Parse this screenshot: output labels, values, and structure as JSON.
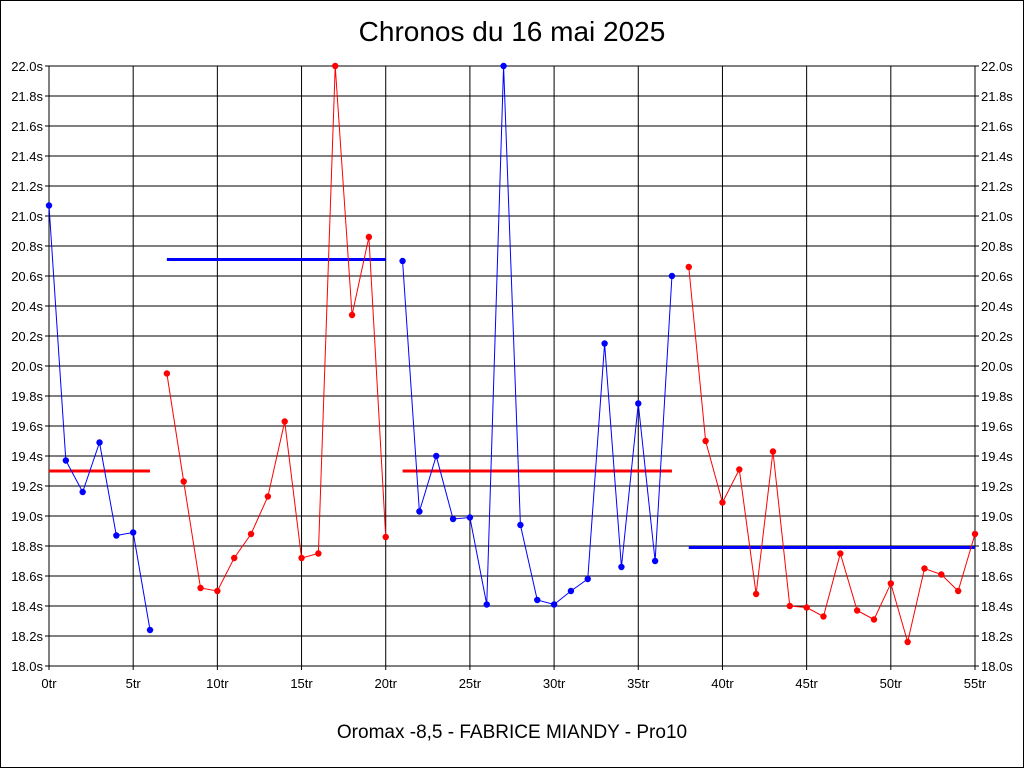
{
  "chart_data": {
    "type": "line",
    "title": "Chronos du 16 mai 2025",
    "subtitle": "Oromax -8,5 - FABRICE MIANDY - Pro10",
    "xlabel": "",
    "ylabel": "",
    "xlim": [
      0,
      55
    ],
    "ylim": [
      18.0,
      22.0
    ],
    "grid": true,
    "x_tick_labels": [
      "0tr",
      "5tr",
      "10tr",
      "15tr",
      "20tr",
      "25tr",
      "30tr",
      "35tr",
      "40tr",
      "45tr",
      "50tr",
      "55tr"
    ],
    "y_tick_labels": [
      "18.0s",
      "18.2s",
      "18.4s",
      "18.6s",
      "18.8s",
      "19.0s",
      "19.2s",
      "19.4s",
      "19.6s",
      "19.8s",
      "20.0s",
      "20.2s",
      "20.4s",
      "20.6s",
      "20.8s",
      "21.0s",
      "21.2s",
      "21.4s",
      "21.6s",
      "21.8s",
      "22.0s"
    ],
    "colors": {
      "blue": "#0000ff",
      "red": "#ff0000"
    },
    "series": [
      {
        "color": "blue",
        "x": [
          0,
          1,
          2,
          3,
          4,
          5,
          6
        ],
        "y": [
          21.07,
          19.37,
          19.16,
          19.49,
          18.87,
          18.89,
          18.24
        ]
      },
      {
        "color": "red",
        "x": [
          7,
          8,
          9,
          10,
          11,
          12,
          13,
          14,
          15,
          16,
          17,
          18,
          19,
          20
        ],
        "y": [
          19.95,
          19.23,
          18.52,
          18.5,
          18.72,
          18.88,
          19.13,
          19.63,
          18.72,
          18.75,
          22.0,
          20.34,
          20.86,
          18.86
        ]
      },
      {
        "color": "blue",
        "x": [
          21,
          22,
          23,
          24,
          25,
          26,
          27,
          28,
          29,
          30,
          31,
          32,
          33,
          34,
          35,
          36,
          37
        ],
        "y": [
          20.7,
          19.03,
          19.4,
          18.98,
          18.99,
          18.41,
          22.0,
          18.94,
          18.44,
          18.41,
          18.5,
          18.58,
          20.15,
          18.66,
          19.75,
          18.7,
          20.6
        ]
      },
      {
        "color": "red",
        "x": [
          38,
          39,
          40,
          41,
          42,
          43,
          44,
          45,
          46,
          47,
          48,
          49,
          50,
          51,
          52,
          53,
          54,
          55
        ],
        "y": [
          20.66,
          19.5,
          19.09,
          19.31,
          18.48,
          19.43,
          18.4,
          18.39,
          18.33,
          18.75,
          18.37,
          18.31,
          18.55,
          18.16,
          18.65,
          18.61,
          18.5,
          18.88
        ]
      }
    ],
    "averages": [
      {
        "color": "red",
        "x_start": 0,
        "x_end": 6,
        "y": 19.3
      },
      {
        "color": "blue",
        "x_start": 7,
        "x_end": 20,
        "y": 20.71
      },
      {
        "color": "red",
        "x_start": 21,
        "x_end": 37,
        "y": 19.3
      },
      {
        "color": "blue",
        "x_start": 38,
        "x_end": 55,
        "y": 18.79
      }
    ]
  }
}
